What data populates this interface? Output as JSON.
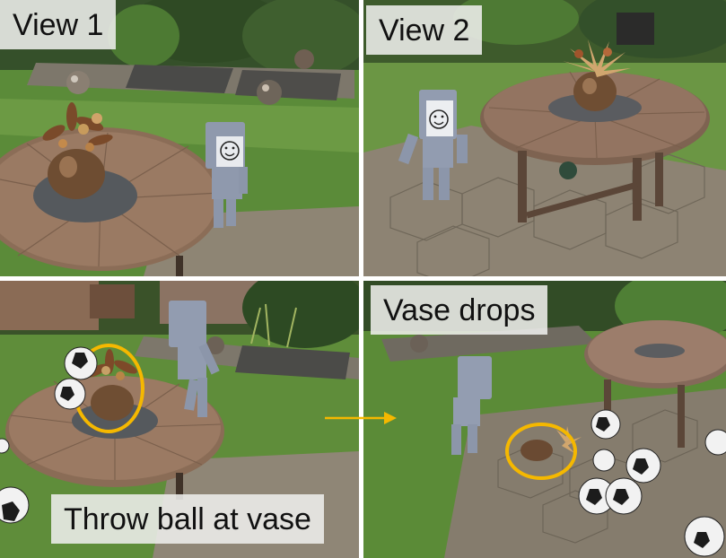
{
  "panels": [
    {
      "name": "view-1",
      "label": "View 1"
    },
    {
      "name": "view-2",
      "label": "View 2"
    },
    {
      "name": "throw-ball",
      "label": "Throw ball at vase"
    },
    {
      "name": "vase-drops",
      "label": "Vase drops"
    }
  ],
  "colors": {
    "highlight_ring": "#f5b800",
    "arrow": "#f5b800",
    "lawn": "#5e8a38",
    "table_wood": "#8c6e57",
    "patio_stone": "#8f8576"
  }
}
